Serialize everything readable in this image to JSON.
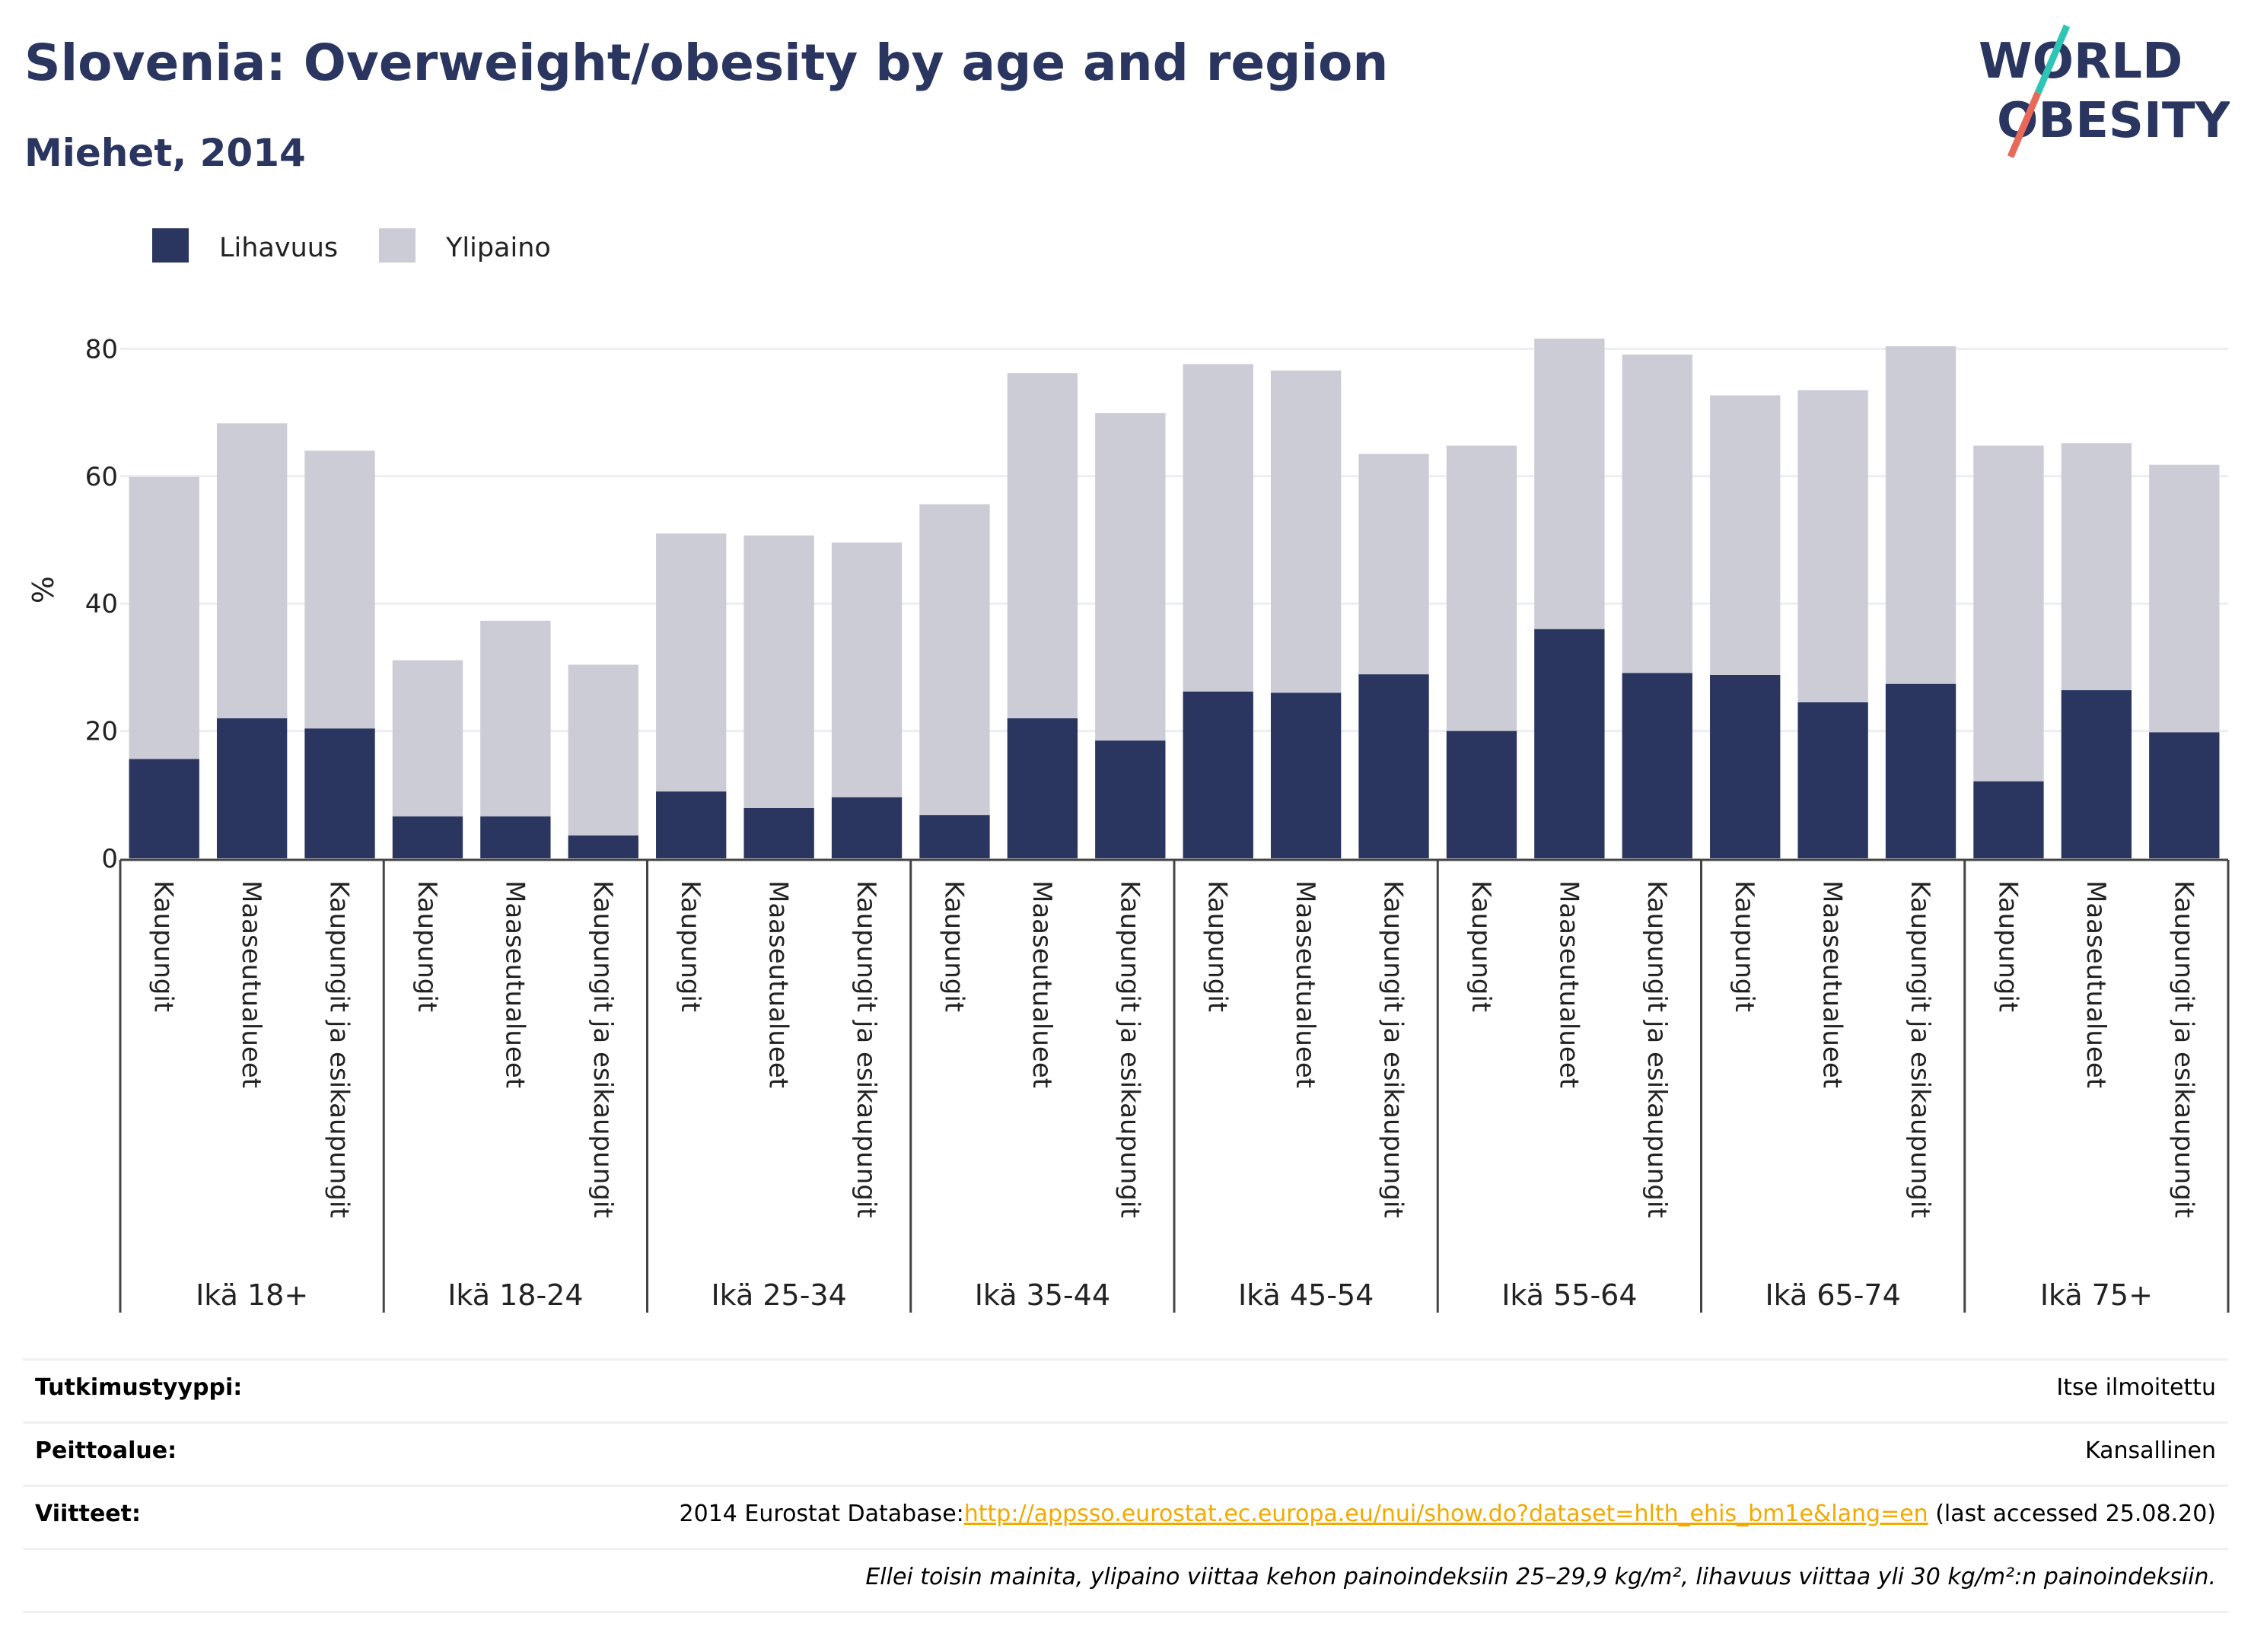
{
  "header": {
    "title": "Slovenia: Overweight/obesity by age and region",
    "subtitle": "Miehet, 2014",
    "logo_line1": "WORLD",
    "logo_line2": "OBESITY"
  },
  "colors": {
    "lihavuus": "#2a3560",
    "ylipaino": "#cbccd6",
    "text": "#2a3560",
    "link": "#f2a900",
    "logo_teal": "#2ec4b6",
    "logo_coral": "#e8695a"
  },
  "chart_data": {
    "type": "bar",
    "stacked": true,
    "ylabel": "%",
    "ylim": [
      0,
      90
    ],
    "yticks": [
      0,
      20,
      40,
      60,
      80
    ],
    "grid": true,
    "legend_position": "top-left",
    "regions": [
      "Kaupungit",
      "Maaseutualueet",
      "Kaupungit ja esikaupungit"
    ],
    "groups": [
      "Ikä 18+",
      "Ikä 18-24",
      "Ikä 25-34",
      "Ikä 35-44",
      "Ikä 45-54",
      "Ikä 55-64",
      "Ikä 65-74",
      "Ikä 75+"
    ],
    "series": [
      {
        "name": "Lihavuus",
        "values": [
          15.6,
          22.0,
          20.4,
          6.6,
          6.6,
          3.6,
          10.5,
          7.9,
          9.6,
          6.8,
          22.0,
          18.5,
          26.2,
          26.0,
          28.9,
          20.0,
          36.0,
          29.1,
          28.8,
          24.5,
          27.4,
          12.1,
          26.4,
          19.8
        ]
      },
      {
        "name": "Ylipaino",
        "values": [
          44.3,
          46.3,
          43.6,
          24.5,
          30.7,
          26.8,
          40.5,
          42.8,
          40.0,
          48.8,
          54.2,
          51.4,
          51.4,
          50.6,
          34.6,
          44.8,
          45.6,
          50.0,
          43.9,
          49.0,
          53.0,
          52.7,
          38.8,
          42.0
        ]
      }
    ]
  },
  "info": {
    "study_type_label": "Tutkimustyyppi:",
    "study_type_value": "Itse ilmoitettu",
    "coverage_label": "Peittoalue:",
    "coverage_value": "Kansallinen",
    "references_label": "Viitteet:",
    "references_prefix": "2014 Eurostat Database:",
    "references_link": "http://appsso.eurostat.ec.europa.eu/nui/show.do?dataset=hlth_ehis_bm1e&lang=en",
    "references_suffix": " (last accessed 25.08.20)",
    "note": "Ellei toisin mainita, ylipaino viittaa kehon painoindeksiin 25–29,9 kg/m², lihavuus viittaa yli 30 kg/m²:n painoindeksiin."
  }
}
